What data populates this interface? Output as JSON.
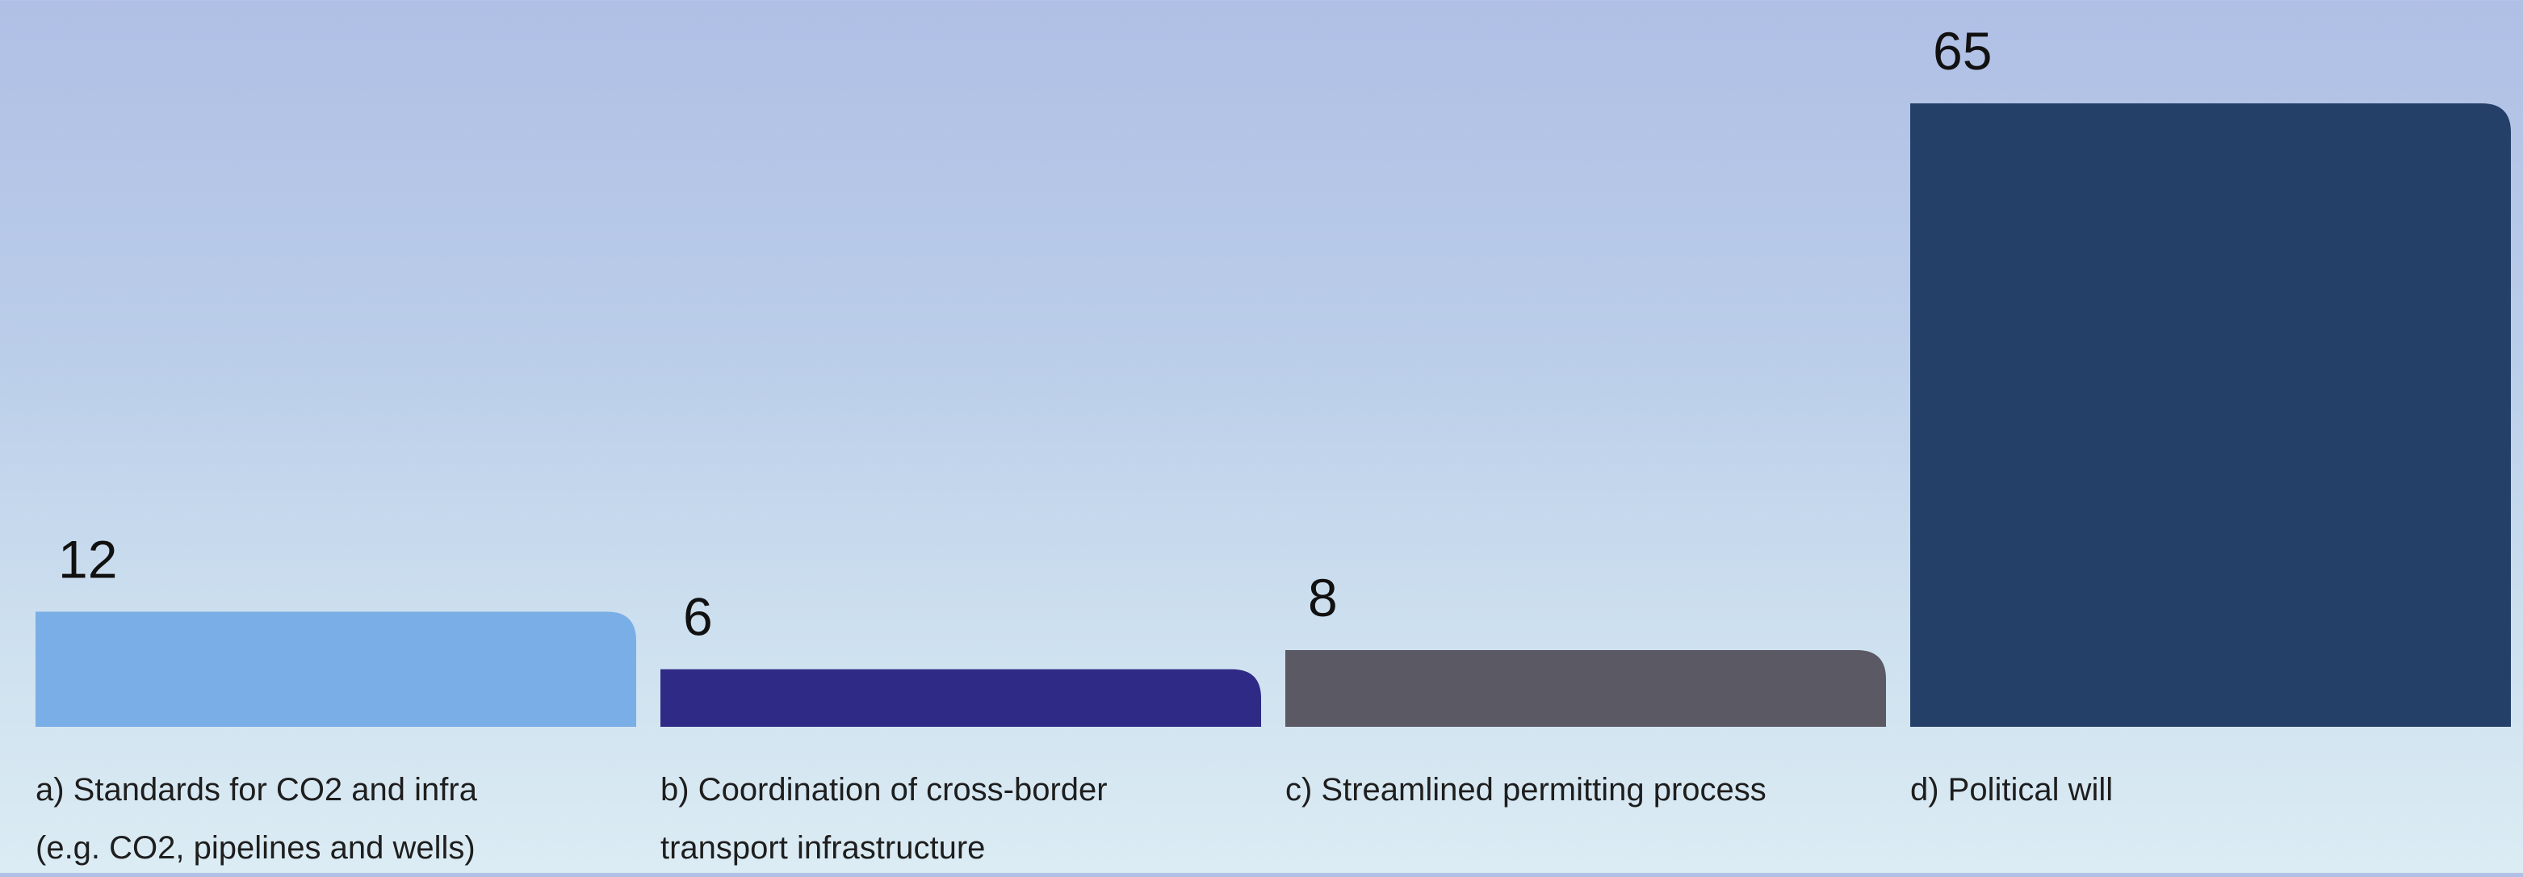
{
  "chart_data": {
    "type": "bar",
    "categories": [
      [
        "a) Standards for CO2 and infra",
        "(e.g. CO2, pipelines and wells)"
      ],
      [
        "b) Coordination of cross-border",
        "transport infrastructure"
      ],
      [
        "c) Streamlined permitting process"
      ],
      [
        "d) Political will"
      ]
    ],
    "values": [
      12,
      6,
      8,
      65
    ],
    "value_labels": [
      "12",
      "6",
      "8",
      "65"
    ],
    "colors": [
      "#7aaee6",
      "#2e2a85",
      "#5a5964",
      "#243f68"
    ],
    "title": "",
    "xlabel": "",
    "ylabel": "",
    "ylim": [
      0,
      65
    ],
    "grid": false,
    "legend": "none"
  }
}
